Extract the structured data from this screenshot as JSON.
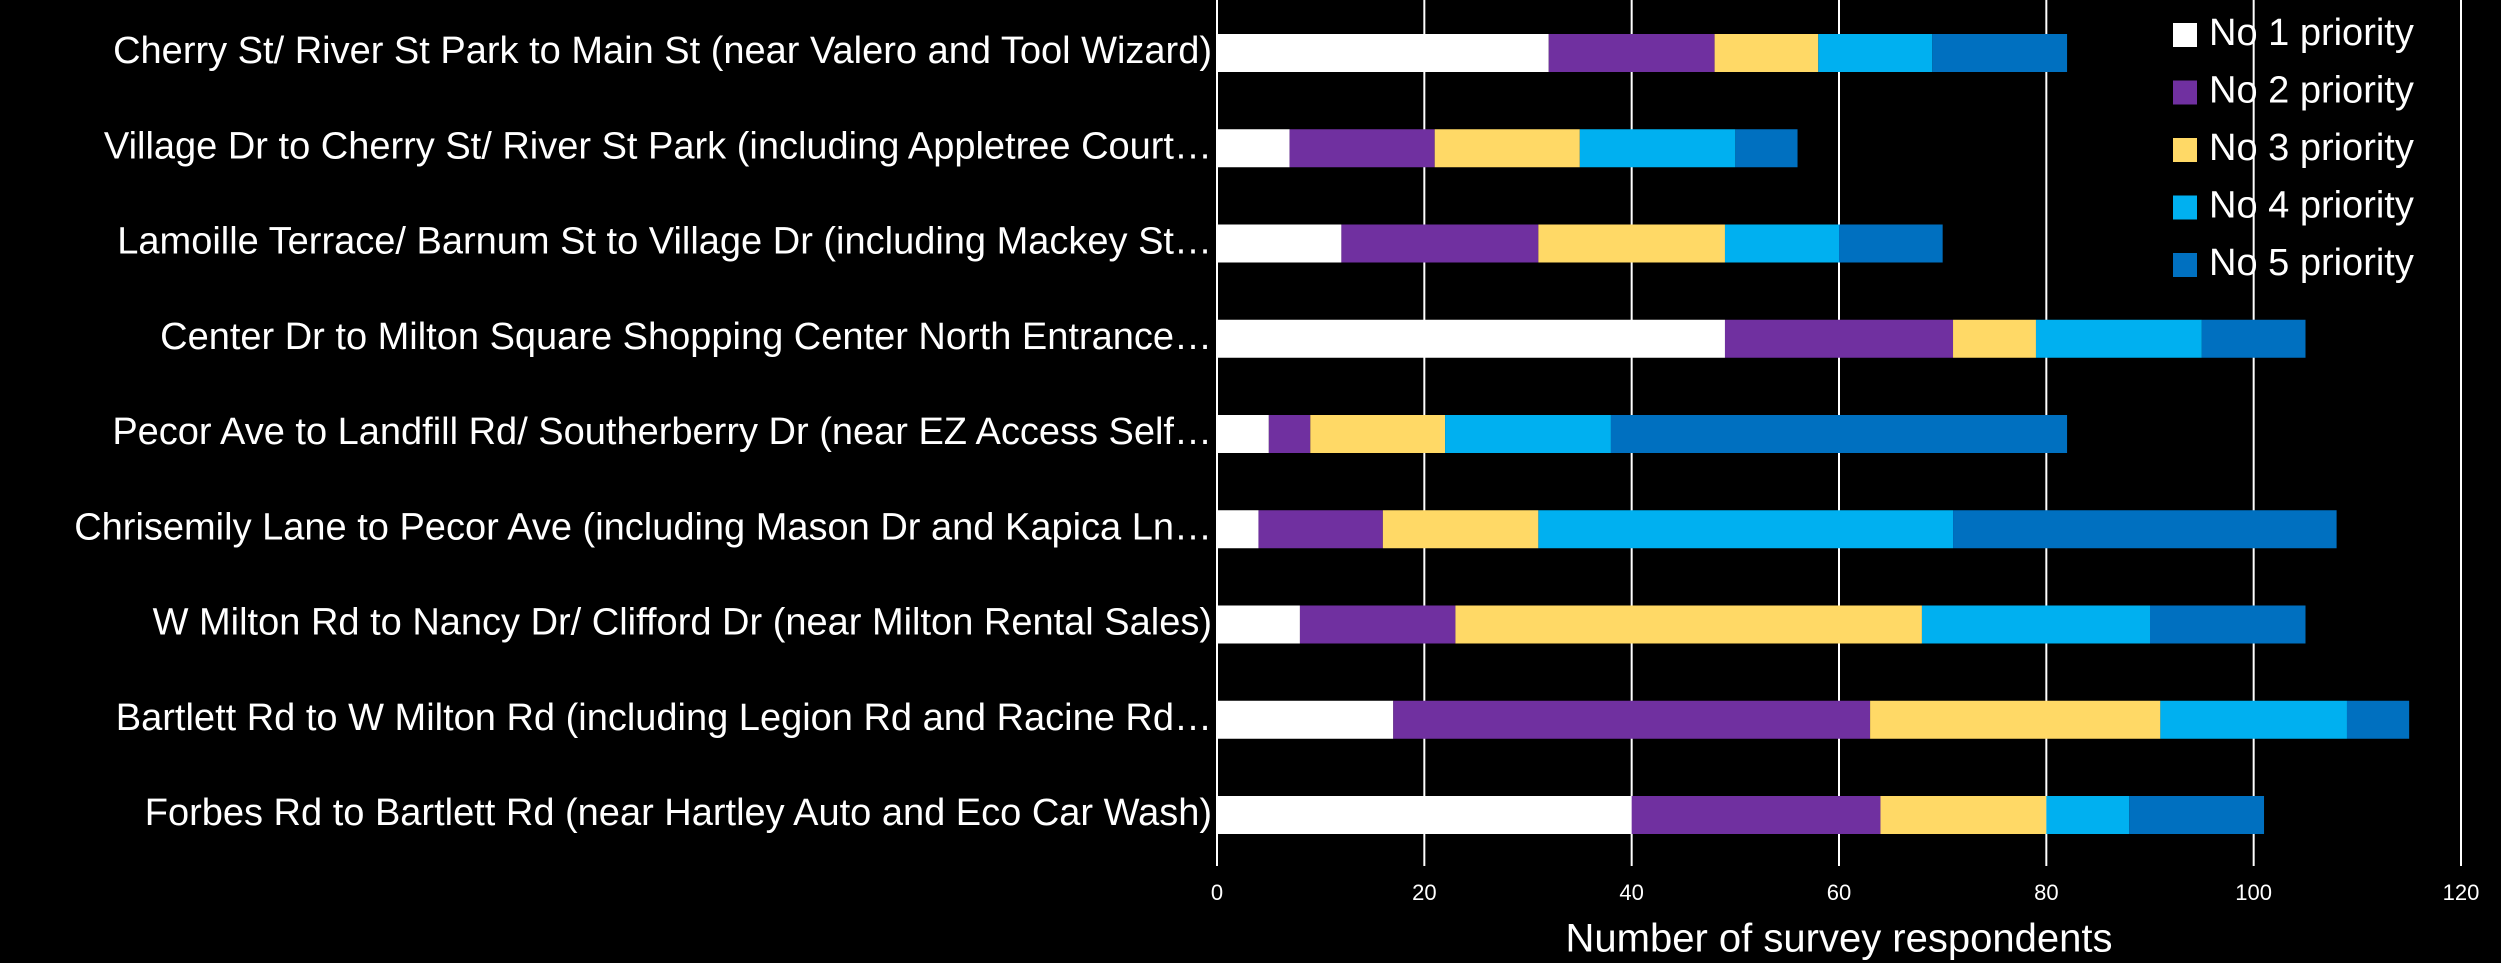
{
  "chart_data": {
    "type": "stacked_barh",
    "x_label": "Number of survey respondents",
    "categories": [
      "Cherry St/ River St Park to Main St (near Valero and Tool Wizard)",
      "Village Dr to Cherry St/ River St Park (including Appletree Court…",
      "Lamoille Terrace/ Barnum St to Village Dr (including Mackey St…",
      "Center Dr to Milton Square Shopping Center North Entrance…",
      "Pecor Ave to Landfill Rd/ Southerberry Dr (near EZ Access Self…",
      "Chrisemily Lane to Pecor Ave (including Mason Dr and Kapica Ln…",
      "W Milton Rd to Nancy Dr/ Clifford Dr (near Milton Rental Sales)",
      "Bartlett Rd to W Milton Rd (including Legion Rd and Racine Rd…",
      "Forbes Rd to Bartlett Rd (near Hartley Auto and Eco Car Wash)"
    ],
    "series": [
      {
        "name": "No 1 priority",
        "color": "#ffffff",
        "values": [
          32,
          7,
          12,
          49,
          5,
          4,
          8,
          17,
          40
        ]
      },
      {
        "name": "No 2 priority",
        "color": "#7030a0",
        "values": [
          16,
          14,
          19,
          22,
          4,
          12,
          15,
          46,
          24
        ]
      },
      {
        "name": "No 3 priority",
        "color": "#ffd966",
        "values": [
          10,
          14,
          18,
          8,
          13,
          15,
          45,
          28,
          16
        ]
      },
      {
        "name": "No 4 priority",
        "color": "#00b0f0",
        "values": [
          11,
          15,
          11,
          16,
          16,
          40,
          22,
          18,
          8
        ]
      },
      {
        "name": "No 5 priority",
        "color": "#0070c0",
        "values": [
          13,
          6,
          10,
          10,
          44,
          37,
          15,
          6,
          13
        ]
      }
    ],
    "xlim": [
      0,
      120
    ],
    "xticks": [
      0,
      20,
      40,
      60,
      80,
      100,
      120
    ],
    "grid": true,
    "legend": "upper right"
  }
}
